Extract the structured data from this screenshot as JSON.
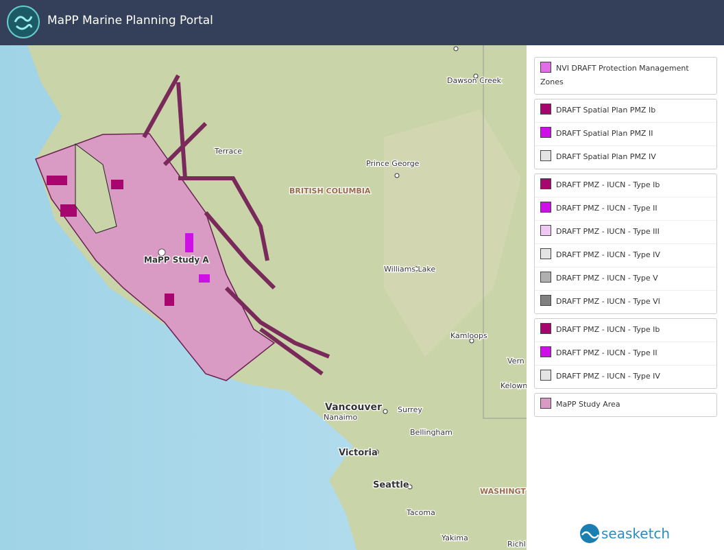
{
  "header": {
    "title": "MaPP Marine Planning Portal"
  },
  "map": {
    "labels": [
      "Dawson Creek",
      "Terrace",
      "Prince George",
      "BRITISH COLUMBIA",
      "MaPP Study A",
      "Williams Lake",
      "Kamloops",
      "Vern",
      "Kelown",
      "Vancouver",
      "Nanaimo",
      "Surrey",
      "Bellingham",
      "Victoria",
      "Seattle",
      "Tacoma",
      "WASHINGT",
      "Yakima",
      "Richl"
    ]
  },
  "legend": {
    "groups": [
      {
        "items": [
          {
            "label": "NVI DRAFT Protection Management Zones",
            "color": "#e36ce8"
          }
        ]
      },
      {
        "items": [
          {
            "label": "DRAFT Spatial Plan PMZ Ib",
            "color": "#a8066f"
          },
          {
            "label": "DRAFT Spatial Plan PMZ II",
            "color": "#cc10e6"
          },
          {
            "label": "DRAFT Spatial Plan PMZ IV",
            "color": "#e4e4e4"
          }
        ]
      },
      {
        "items": [
          {
            "label": "DRAFT PMZ - IUCN - Type Ib",
            "color": "#a8066f"
          },
          {
            "label": "DRAFT PMZ - IUCN - Type II",
            "color": "#cc10e6"
          },
          {
            "label": "DRAFT PMZ - IUCN - Type III",
            "color": "#f0c8f4"
          },
          {
            "label": "DRAFT PMZ - IUCN - Type IV",
            "color": "#e4e4e4"
          },
          {
            "label": "DRAFT PMZ - IUCN - Type V",
            "color": "#b0b0b0"
          },
          {
            "label": "DRAFT PMZ - IUCN - Type VI",
            "color": "#808080"
          }
        ]
      },
      {
        "items": [
          {
            "label": "DRAFT PMZ - IUCN - Type Ib",
            "color": "#a8066f"
          },
          {
            "label": "DRAFT PMZ - IUCN - Type II",
            "color": "#cc10e6"
          },
          {
            "label": "DRAFT PMZ - IUCN - Type IV",
            "color": "#e4e4e4"
          }
        ]
      },
      {
        "items": [
          {
            "label": "MaPP Study Area",
            "color": "#d99ac4"
          }
        ]
      }
    ]
  },
  "footer": {
    "brand": "seasketch"
  }
}
